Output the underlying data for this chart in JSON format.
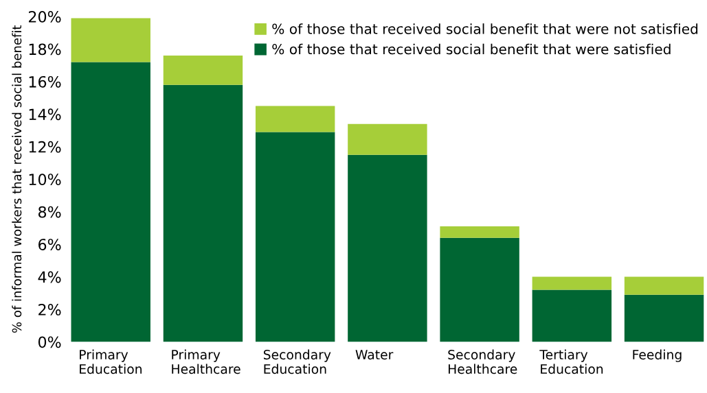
{
  "chart_data": {
    "type": "bar",
    "stacked": true,
    "ylabel": "% of informal workers that received social benefit",
    "categories": [
      "Primary Education",
      "Primary Healthcare",
      "Secondary Education",
      "Water",
      "Secondary Healthcare",
      "Tertiary Education",
      "Feeding"
    ],
    "series": [
      {
        "name": "% of those that received social benefit that were satisfied",
        "color": "#006633",
        "values": [
          17.2,
          15.8,
          12.9,
          11.5,
          6.4,
          3.2,
          2.9
        ]
      },
      {
        "name": "% of those that received social benefit that were not satisfied",
        "color": "#a6ce39",
        "values": [
          2.7,
          1.8,
          1.6,
          1.9,
          0.7,
          0.8,
          1.1
        ]
      }
    ],
    "ylim": [
      0,
      20
    ],
    "yticks": [
      {
        "value": 0,
        "label": "0%"
      },
      {
        "value": 2,
        "label": "2%"
      },
      {
        "value": 4,
        "label": "4%"
      },
      {
        "value": 6,
        "label": "6%"
      },
      {
        "value": 8,
        "label": "8%"
      },
      {
        "value": 10,
        "label": "10%"
      },
      {
        "value": 12,
        "label": "12%"
      },
      {
        "value": 14,
        "label": "14%"
      },
      {
        "value": 16,
        "label": "16%"
      },
      {
        "value": 18,
        "label": "18%"
      },
      {
        "value": 20,
        "label": "20%"
      }
    ],
    "grid": false,
    "legend": "top right"
  }
}
